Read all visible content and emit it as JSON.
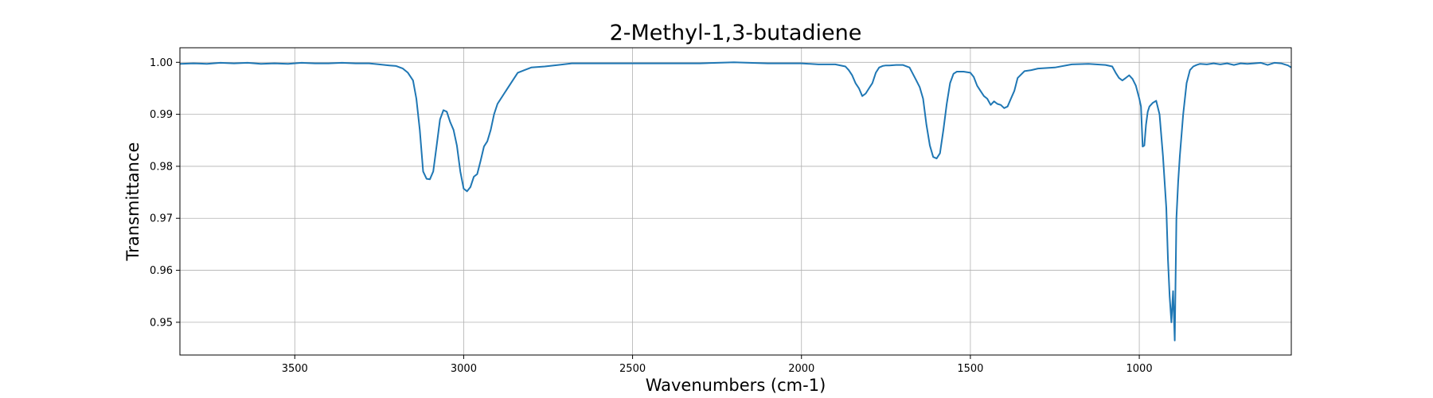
{
  "chart_data": {
    "type": "line",
    "title": "2-Methyl-1,3-butadiene",
    "xlabel": "Wavenumbers (cm-1)",
    "ylabel": "Transmittance",
    "xlim": [
      3840,
      550
    ],
    "ylim": [
      0.9437,
      1.0028
    ],
    "x_reversed": true,
    "grid": true,
    "xticks": [
      3500,
      3000,
      2500,
      2000,
      1500,
      1000
    ],
    "xtick_labels": [
      "3500",
      "3000",
      "2500",
      "2000",
      "1500",
      "1000"
    ],
    "yticks": [
      0.95,
      0.96,
      0.97,
      0.98,
      0.99,
      1.0
    ],
    "ytick_labels": [
      "0.95",
      "0.96",
      "0.97",
      "0.98",
      "0.99",
      "1.00"
    ],
    "line_color": "#1f77b4",
    "series": [
      {
        "x": [
          3840,
          3800,
          3760,
          3720,
          3680,
          3640,
          3600,
          3560,
          3520,
          3480,
          3440,
          3400,
          3360,
          3320,
          3280,
          3250,
          3220,
          3200,
          3180,
          3165,
          3150,
          3140,
          3130,
          3120,
          3110,
          3100,
          3090,
          3080,
          3070,
          3060,
          3050,
          3040,
          3030,
          3020,
          3010,
          3000,
          2990,
          2980,
          2970,
          2960,
          2950,
          2940,
          2930,
          2920,
          2910,
          2900,
          2880,
          2860,
          2840,
          2820,
          2800,
          2760,
          2720,
          2680,
          2600,
          2500,
          2400,
          2300,
          2200,
          2100,
          2000,
          1950,
          1900,
          1870,
          1860,
          1850,
          1840,
          1830,
          1820,
          1810,
          1800,
          1790,
          1780,
          1770,
          1760,
          1750,
          1740,
          1720,
          1700,
          1680,
          1660,
          1650,
          1640,
          1630,
          1620,
          1610,
          1600,
          1590,
          1580,
          1570,
          1560,
          1550,
          1540,
          1520,
          1500,
          1490,
          1480,
          1470,
          1460,
          1450,
          1440,
          1430,
          1420,
          1410,
          1400,
          1390,
          1380,
          1370,
          1360,
          1340,
          1320,
          1300,
          1250,
          1200,
          1150,
          1100,
          1080,
          1070,
          1060,
          1050,
          1040,
          1030,
          1020,
          1010,
          1000,
          995,
          990,
          985,
          980,
          975,
          970,
          960,
          950,
          940,
          930,
          920,
          915,
          910,
          905,
          900,
          895,
          890,
          885,
          880,
          870,
          860,
          850,
          840,
          830,
          820,
          800,
          780,
          760,
          740,
          720,
          700,
          680,
          660,
          640,
          620,
          600,
          580,
          560,
          550
        ],
        "y": [
          0.9997,
          0.9998,
          0.9997,
          0.9999,
          0.9998,
          0.9999,
          0.9997,
          0.9998,
          0.9997,
          0.9999,
          0.9998,
          0.9998,
          0.9999,
          0.9998,
          0.9998,
          0.9996,
          0.9994,
          0.9993,
          0.9988,
          0.998,
          0.9965,
          0.993,
          0.987,
          0.979,
          0.9776,
          0.9775,
          0.979,
          0.984,
          0.989,
          0.9908,
          0.9905,
          0.9885,
          0.987,
          0.984,
          0.979,
          0.9757,
          0.9752,
          0.976,
          0.978,
          0.9785,
          0.981,
          0.9838,
          0.9848,
          0.987,
          0.99,
          0.992,
          0.994,
          0.996,
          0.998,
          0.9985,
          0.999,
          0.9992,
          0.9995,
          0.9998,
          0.9998,
          0.9998,
          0.9998,
          0.9998,
          1.0,
          0.9998,
          0.9998,
          0.9996,
          0.9996,
          0.9992,
          0.9985,
          0.9975,
          0.996,
          0.995,
          0.9935,
          0.994,
          0.995,
          0.996,
          0.998,
          0.999,
          0.9993,
          0.9994,
          0.9994,
          0.9995,
          0.9995,
          0.999,
          0.9965,
          0.9952,
          0.993,
          0.988,
          0.984,
          0.9818,
          0.9815,
          0.9825,
          0.987,
          0.992,
          0.996,
          0.9978,
          0.9982,
          0.9982,
          0.998,
          0.9972,
          0.9955,
          0.9945,
          0.9935,
          0.993,
          0.9918,
          0.9925,
          0.992,
          0.9918,
          0.9912,
          0.9915,
          0.993,
          0.9945,
          0.997,
          0.9983,
          0.9985,
          0.9988,
          0.999,
          0.9996,
          0.9997,
          0.9995,
          0.9992,
          0.998,
          0.997,
          0.9965,
          0.997,
          0.9975,
          0.9968,
          0.9955,
          0.993,
          0.9915,
          0.9838,
          0.984,
          0.988,
          0.9905,
          0.9915,
          0.9922,
          0.9926,
          0.99,
          0.982,
          0.972,
          0.962,
          0.955,
          0.95,
          0.956,
          0.9465,
          0.97,
          0.977,
          0.982,
          0.99,
          0.996,
          0.9985,
          0.9992,
          0.9995,
          0.9997,
          0.9996,
          0.9998,
          0.9996,
          0.9998,
          0.9995,
          0.9998,
          0.9997,
          0.9998,
          0.9999,
          0.9995,
          0.9999,
          0.9998,
          0.9994,
          0.999
        ]
      }
    ]
  }
}
